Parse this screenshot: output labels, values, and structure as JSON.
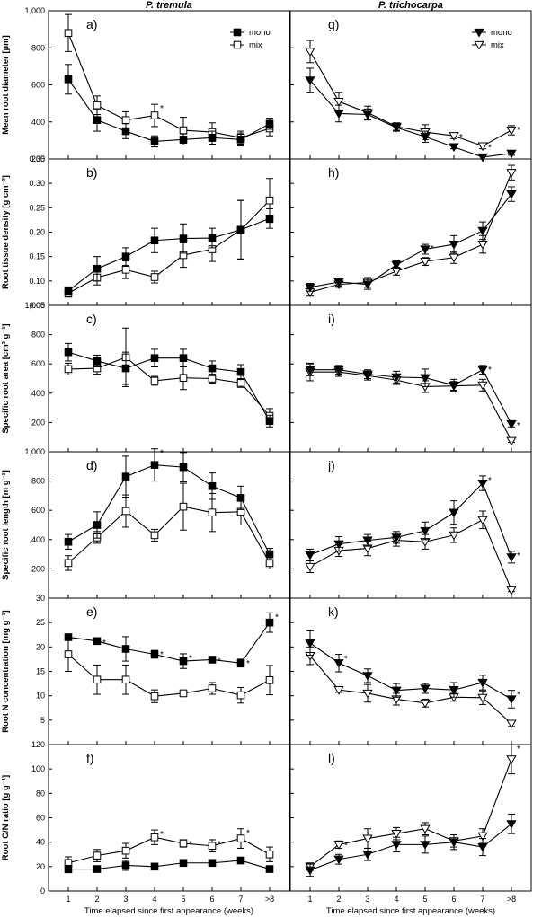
{
  "figure": {
    "column_titles": [
      "P. tremula",
      "P. trichocarpa"
    ],
    "x_axis_title": "Time elapsed since first appearance (weeks)",
    "legend": {
      "mono": "mono",
      "mix": "mix"
    }
  },
  "chart_data": [
    {
      "id": "a",
      "type": "line",
      "panel_label": "a)",
      "ylabel": "Mean root diameter [µm]",
      "ylim": [
        200,
        1000
      ],
      "yticks": [
        200,
        400,
        600,
        800,
        1000
      ],
      "ytick_labels": [
        "200",
        "400",
        "600",
        "800",
        "1,000"
      ],
      "categories": [
        "1",
        "2",
        "3",
        "4",
        "5",
        "6",
        "7",
        ">8"
      ],
      "series": [
        {
          "name": "mono",
          "values": [
            630,
            410,
            350,
            295,
            305,
            315,
            305,
            390
          ],
          "err": [
            80,
            60,
            40,
            30,
            30,
            35,
            35,
            30
          ]
        },
        {
          "name": "mix",
          "values": [
            880,
            490,
            410,
            435,
            355,
            345,
            315,
            365
          ],
          "err": [
            100,
            50,
            45,
            60,
            70,
            50,
            35,
            40
          ]
        }
      ],
      "stars": [
        {
          "index": 3,
          "value": 435,
          "err": 60
        }
      ]
    },
    {
      "id": "g",
      "type": "line",
      "panel_label": "g)",
      "ylabel": "",
      "ylim": [
        200,
        1000
      ],
      "yticks": [
        200,
        400,
        600,
        800,
        1000
      ],
      "ytick_labels": [
        "200",
        "400",
        "600",
        "800",
        "1,000"
      ],
      "categories": [
        "1",
        "2",
        "3",
        "4",
        "5",
        "6",
        "7",
        ">8"
      ],
      "series": [
        {
          "name": "mono",
          "values": [
            625,
            445,
            440,
            370,
            320,
            265,
            210,
            230
          ],
          "err": [
            65,
            45,
            30,
            20,
            30,
            10,
            10,
            10
          ]
        },
        {
          "name": "mix",
          "values": [
            780,
            510,
            450,
            375,
            345,
            325,
            270,
            355
          ],
          "err": [
            60,
            50,
            35,
            20,
            40,
            15,
            15,
            25
          ]
        }
      ],
      "stars": [
        {
          "index": 5,
          "value": 325,
          "err": 15
        },
        {
          "index": 6,
          "value": 270,
          "err": 15
        },
        {
          "index": 7,
          "value": 355,
          "err": 25
        }
      ]
    },
    {
      "id": "b",
      "type": "line",
      "panel_label": "b)",
      "ylabel": "Root tissue density [g cm⁻³]",
      "ylim": [
        0.05,
        0.35
      ],
      "yticks": [
        0.05,
        0.1,
        0.15,
        0.2,
        0.25,
        0.3,
        0.35
      ],
      "ytick_labels": [
        "0.05",
        "0.10",
        "0.15",
        "0.20",
        "0.25",
        "0.30",
        "0.35"
      ],
      "categories": [
        "1",
        "2",
        "3",
        "4",
        "5",
        "6",
        "7",
        ">8"
      ],
      "series": [
        {
          "name": "mono",
          "values": [
            0.08,
            0.125,
            0.15,
            0.183,
            0.187,
            0.188,
            0.205,
            0.228
          ],
          "err": [
            0.008,
            0.025,
            0.018,
            0.025,
            0.03,
            0.02,
            0.06,
            0.02
          ]
        },
        {
          "name": "mix",
          "values": [
            0.075,
            0.107,
            0.123,
            0.108,
            0.153,
            0.165,
            0.205,
            0.265
          ],
          "err": [
            0.008,
            0.015,
            0.018,
            0.012,
            0.025,
            0.025,
            0.06,
            0.045
          ]
        }
      ],
      "stars": []
    },
    {
      "id": "h",
      "type": "line",
      "panel_label": "h)",
      "ylabel": "",
      "ylim": [
        0.05,
        0.35
      ],
      "yticks": [
        0.05,
        0.1,
        0.15,
        0.2,
        0.25,
        0.3,
        0.35
      ],
      "ytick_labels": [
        "0.05",
        "0.10",
        "0.15",
        "0.20",
        "0.25",
        "0.30",
        "0.35"
      ],
      "categories": [
        "1",
        "2",
        "3",
        "4",
        "5",
        "6",
        "7",
        ">8"
      ],
      "series": [
        {
          "name": "mono",
          "values": [
            0.087,
            0.098,
            0.093,
            0.133,
            0.165,
            0.175,
            0.203,
            0.278
          ],
          "err": [
            0.008,
            0.008,
            0.01,
            0.008,
            0.01,
            0.018,
            0.018,
            0.015
          ]
        },
        {
          "name": "mix",
          "values": [
            0.077,
            0.093,
            0.097,
            0.12,
            0.14,
            0.148,
            0.175,
            0.322
          ],
          "err": [
            0.008,
            0.006,
            0.01,
            0.008,
            0.008,
            0.012,
            0.018,
            0.015
          ]
        }
      ],
      "stars": [
        {
          "index": 4,
          "value": 0.165,
          "err": 0.01
        }
      ]
    },
    {
      "id": "c",
      "type": "line",
      "panel_label": "c)",
      "ylabel": "Specific root area [cm² g⁻¹]",
      "ylim": [
        0,
        1000
      ],
      "yticks": [
        200,
        400,
        600,
        800,
        1000
      ],
      "ytick_labels": [
        "200",
        "400",
        "600",
        "800",
        "1,000"
      ],
      "categories": [
        "1",
        "2",
        "3",
        "4",
        "5",
        "6",
        "7",
        ">8"
      ],
      "series": [
        {
          "name": "mono",
          "values": [
            680,
            620,
            570,
            640,
            640,
            570,
            545,
            210
          ],
          "err": [
            60,
            40,
            110,
            60,
            60,
            50,
            50,
            40
          ]
        },
        {
          "name": "mix",
          "values": [
            565,
            570,
            645,
            485,
            505,
            500,
            470,
            245
          ],
          "err": [
            40,
            40,
            200,
            30,
            80,
            30,
            30,
            50
          ]
        }
      ],
      "stars": []
    },
    {
      "id": "i",
      "type": "line",
      "panel_label": "i)",
      "ylabel": "",
      "ylim": [
        0,
        1000
      ],
      "yticks": [
        200,
        400,
        600,
        800,
        1000
      ],
      "ytick_labels": [
        "200",
        "400",
        "600",
        "800",
        "1,000"
      ],
      "categories": [
        "1",
        "2",
        "3",
        "4",
        "5",
        "6",
        "7",
        ">8"
      ],
      "series": [
        {
          "name": "mono",
          "values": [
            560,
            560,
            530,
            510,
            505,
            455,
            560,
            190
          ],
          "err": [
            40,
            30,
            30,
            40,
            60,
            40,
            30,
            20
          ]
        },
        {
          "name": "mix",
          "values": [
            545,
            545,
            520,
            490,
            445,
            450,
            455,
            75
          ],
          "err": [
            60,
            30,
            30,
            30,
            40,
            30,
            40,
            10
          ]
        }
      ],
      "stars": [
        {
          "index": 6,
          "value": 560,
          "err": 30
        },
        {
          "index": 7,
          "value": 190,
          "err": 20
        }
      ]
    },
    {
      "id": "d",
      "type": "line",
      "panel_label": "d)",
      "ylabel": "Specific root length [m g⁻¹]",
      "ylim": [
        0,
        1000
      ],
      "yticks": [
        200,
        400,
        600,
        800,
        1000
      ],
      "ytick_labels": [
        "200",
        "400",
        "600",
        "800",
        "1,000"
      ],
      "categories": [
        "1",
        "2",
        "3",
        "4",
        "5",
        "6",
        "7",
        ">8"
      ],
      "series": [
        {
          "name": "mono",
          "values": [
            385,
            500,
            830,
            910,
            895,
            765,
            685,
            300
          ],
          "err": [
            50,
            90,
            140,
            110,
            100,
            90,
            80,
            40
          ]
        },
        {
          "name": "mix",
          "values": [
            240,
            415,
            595,
            430,
            625,
            585,
            590,
            240
          ],
          "err": [
            50,
            40,
            110,
            40,
            160,
            130,
            90,
            40
          ]
        }
      ],
      "stars": [
        {
          "index": 3,
          "value": 910,
          "err": 110
        }
      ]
    },
    {
      "id": "j",
      "type": "line",
      "panel_label": "j)",
      "ylabel": "",
      "ylim": [
        0,
        1000
      ],
      "yticks": [
        200,
        400,
        600,
        800,
        1000
      ],
      "ytick_labels": [
        "200",
        "400",
        "600",
        "800",
        "1,000"
      ],
      "categories": [
        "1",
        "2",
        "3",
        "4",
        "5",
        "6",
        "7",
        ">8"
      ],
      "series": [
        {
          "name": "mono",
          "values": [
            295,
            370,
            395,
            415,
            460,
            585,
            785,
            280
          ],
          "err": [
            40,
            50,
            40,
            40,
            60,
            80,
            50,
            40
          ]
        },
        {
          "name": "mix",
          "values": [
            215,
            325,
            340,
            395,
            385,
            430,
            535,
            55
          ],
          "err": [
            40,
            40,
            50,
            40,
            50,
            50,
            60,
            10
          ]
        }
      ],
      "stars": [
        {
          "index": 6,
          "value": 785,
          "err": 50
        },
        {
          "index": 7,
          "value": 280,
          "err": 40
        }
      ]
    },
    {
      "id": "e",
      "type": "line",
      "panel_label": "e)",
      "ylabel": "Root N concentration [mg g⁻¹]",
      "ylim": [
        0,
        30
      ],
      "yticks": [
        5,
        10,
        15,
        20,
        25,
        30
      ],
      "ytick_labels": [
        "5",
        "10",
        "15",
        "20",
        "25",
        "30"
      ],
      "categories": [
        "1",
        "2",
        "3",
        "4",
        "5",
        "6",
        "7",
        ">8"
      ],
      "series": [
        {
          "name": "mono",
          "values": [
            22.0,
            21.2,
            19.6,
            18.5,
            17.1,
            17.4,
            16.7,
            25.0
          ],
          "err": [
            0.5,
            0.5,
            2.5,
            0.8,
            1.5,
            0.5,
            0.8,
            2.0
          ]
        },
        {
          "name": "mix",
          "values": [
            18.5,
            13.3,
            13.3,
            9.9,
            10.5,
            11.5,
            10.1,
            13.2
          ],
          "err": [
            3.5,
            3.0,
            3.0,
            1.3,
            0.5,
            1.2,
            1.6,
            3.0
          ]
        }
      ],
      "stars": [
        {
          "index": 1,
          "value": 21.2,
          "err": 0.5
        },
        {
          "index": 3,
          "value": 18.5,
          "err": 0.8
        },
        {
          "index": 4,
          "value": 17.1,
          "err": 1.5
        },
        {
          "index": 5,
          "value": 17.4,
          "err": 0.5
        },
        {
          "index": 6,
          "value": 16.7,
          "err": 0.8
        },
        {
          "index": 7,
          "value": 25.0,
          "err": 2.0
        }
      ]
    },
    {
      "id": "k",
      "type": "line",
      "panel_label": "k)",
      "ylabel": "",
      "ylim": [
        0,
        30
      ],
      "yticks": [
        5,
        10,
        15,
        20,
        25,
        30
      ],
      "ytick_labels": [
        "5",
        "10",
        "15",
        "20",
        "25",
        "30"
      ],
      "categories": [
        "1",
        "2",
        "3",
        "4",
        "5",
        "6",
        "7",
        ">8"
      ],
      "series": [
        {
          "name": "mono",
          "values": [
            20.8,
            16.7,
            14.1,
            11.1,
            11.5,
            11.2,
            12.7,
            9.3
          ],
          "err": [
            2.5,
            1.8,
            1.4,
            1.4,
            1.0,
            1.5,
            1.5,
            1.8
          ]
        },
        {
          "name": "mix",
          "values": [
            18.2,
            11.2,
            10.5,
            9.3,
            8.5,
            9.7,
            9.6,
            4.3
          ],
          "err": [
            1.8,
            0.5,
            1.8,
            1.2,
            0.8,
            0.8,
            1.4,
            0.6
          ]
        }
      ],
      "stars": [
        {
          "index": 1,
          "value": 16.7,
          "err": 1.8
        },
        {
          "index": 7,
          "value": 9.3,
          "err": 1.8
        }
      ]
    },
    {
      "id": "f",
      "type": "line",
      "panel_label": "f)",
      "ylabel": "Root C/N ratio [g g⁻¹]",
      "ylim": [
        0,
        120
      ],
      "yticks": [
        0,
        20,
        40,
        60,
        80,
        100,
        120
      ],
      "ytick_labels": [
        "0",
        "20",
        "40",
        "60",
        "80",
        "100",
        "120"
      ],
      "categories": [
        "1",
        "2",
        "3",
        "4",
        "5",
        "6",
        "7",
        ">8"
      ],
      "series": [
        {
          "name": "mono",
          "values": [
            18,
            18,
            21,
            20,
            23,
            23,
            25,
            18
          ],
          "err": [
            3,
            2,
            4,
            2,
            2,
            2,
            2,
            2
          ]
        },
        {
          "name": "mix",
          "values": [
            23,
            29,
            33,
            44,
            39,
            37,
            43,
            30
          ],
          "err": [
            5,
            5,
            6,
            6,
            3,
            5,
            8,
            6
          ]
        }
      ],
      "stars": [
        {
          "index": 3,
          "value": 44,
          "err": 6
        },
        {
          "index": 4,
          "value": 39,
          "err": 3
        },
        {
          "index": 5,
          "value": 37,
          "err": 5
        },
        {
          "index": 6,
          "value": 43,
          "err": 8
        }
      ]
    },
    {
      "id": "l",
      "type": "line",
      "panel_label": "l)",
      "ylabel": "",
      "ylim": [
        0,
        120
      ],
      "yticks": [
        0,
        20,
        40,
        60,
        80,
        100,
        120
      ],
      "ytick_labels": [
        "0",
        "20",
        "40",
        "60",
        "80",
        "100",
        "120"
      ],
      "categories": [
        "1",
        "2",
        "3",
        "4",
        "5",
        "6",
        "7",
        ">8"
      ],
      "series": [
        {
          "name": "mono",
          "values": [
            17,
            26,
            30,
            38,
            38,
            40,
            36,
            55
          ],
          "err": [
            5,
            4,
            5,
            6,
            7,
            6,
            7,
            8
          ]
        },
        {
          "name": "mix",
          "values": [
            20,
            38,
            43,
            47,
            51,
            41,
            45,
            108
          ],
          "err": [
            3,
            3,
            8,
            5,
            5,
            5,
            6,
            12
          ]
        }
      ],
      "stars": [
        {
          "index": 1,
          "value": 38,
          "err": 3
        },
        {
          "index": 7,
          "value": 108,
          "err": 12
        }
      ]
    }
  ]
}
